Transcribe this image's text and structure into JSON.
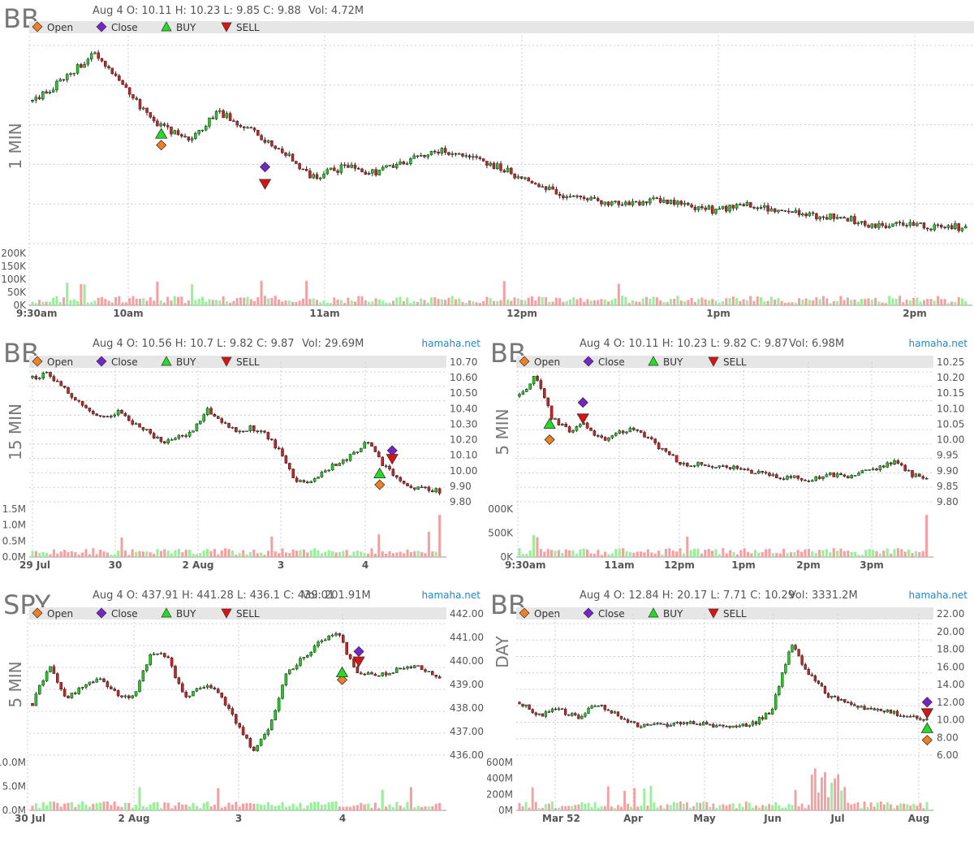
{
  "legend": {
    "open": "Open",
    "close": "Close",
    "buy": "BUY",
    "sell": "SELL"
  },
  "panels": [
    {
      "id": "p1",
      "symbol": "BB",
      "timeframe": "1 MIN",
      "ohlc": "Aug 4 O: 10.11 H: 10.23 L: 9.85 C: 9.88",
      "vol": "Vol: 4.72M",
      "watermark": "",
      "chart_data": {
        "type": "candlestick",
        "x_labels": [
          "9:30am",
          "10am",
          "11am",
          "12pm",
          "1pm",
          "2pm"
        ],
        "price_path": [
          10.11,
          10.15,
          10.2,
          10.13,
          10.07,
          10.04,
          10.09,
          10.06,
          10.02,
          9.97,
          9.99,
          9.98,
          10.0,
          10.02,
          10.01,
          9.99,
          9.96,
          9.94,
          9.93,
          9.92,
          9.93,
          9.92,
          9.91,
          9.92,
          9.91,
          9.9,
          9.9,
          9.88,
          9.89,
          9.88,
          9.88
        ],
        "price_range": [
          9.85,
          10.23
        ],
        "y_ticks": [],
        "volume_ticks": [
          "200K",
          "150K",
          "100K",
          "50K",
          "0K"
        ],
        "volume_max": 200000,
        "buy": {
          "x": 0.14,
          "price": 10.05
        },
        "sell": {
          "x": 0.25,
          "price": 9.96
        },
        "open_marker": {
          "x": 0.14,
          "price": 10.03
        },
        "close_marker": {
          "x": 0.25,
          "price": 9.99
        }
      }
    },
    {
      "id": "p2",
      "symbol": "BB",
      "timeframe": "15 MIN",
      "ohlc": "Aug 4 O: 10.56 H: 10.7 L: 9.82 C: 9.87",
      "vol": "Vol: 29.69M",
      "watermark": "hamaha.net",
      "chart_data": {
        "type": "candlestick",
        "x_labels": [
          "29 Jul",
          "30",
          "2 Aug",
          "3",
          "4"
        ],
        "price_path": [
          10.6,
          10.62,
          10.55,
          10.45,
          10.38,
          10.35,
          10.38,
          10.3,
          10.25,
          10.18,
          10.22,
          10.24,
          10.4,
          10.32,
          10.25,
          10.28,
          10.24,
          10.12,
          9.95,
          9.92,
          10.0,
          10.05,
          10.1,
          10.2,
          10.05,
          9.96,
          9.9,
          9.88,
          9.87
        ],
        "price_range": [
          9.8,
          10.7
        ],
        "y_ticks": [
          "10.70",
          "10.60",
          "10.50",
          "10.40",
          "10.30",
          "10.20",
          "10.10",
          "10.00",
          "9.90",
          "9.80"
        ],
        "volume_ticks": [
          "1.5M",
          "1.0M",
          "0.5M",
          "0.0M"
        ],
        "volume_max": 1500000,
        "buy": {
          "x": 0.84,
          "price": 9.98
        },
        "sell": {
          "x": 0.87,
          "price": 10.08
        },
        "open_marker": {
          "x": 0.84,
          "price": 9.91
        },
        "close_marker": {
          "x": 0.87,
          "price": 10.13
        }
      }
    },
    {
      "id": "p3",
      "symbol": "BB",
      "timeframe": "5 MIN",
      "ohlc": "Aug 4 O: 10.11 H: 10.23 L: 9.82 C: 9.87",
      "vol": "Vol: 6.98M",
      "watermark": "hamaha.net",
      "chart_data": {
        "type": "candlestick",
        "x_labels": [
          "9:30am",
          "11am",
          "12pm",
          "1pm",
          "2pm",
          "3pm"
        ],
        "price_path": [
          10.14,
          10.21,
          10.07,
          10.03,
          10.05,
          10.0,
          10.02,
          10.04,
          10.0,
          9.96,
          9.92,
          9.92,
          9.91,
          9.91,
          9.9,
          9.89,
          9.88,
          9.88,
          9.87,
          9.89,
          9.88,
          9.9,
          9.91,
          9.93,
          9.89,
          9.87
        ],
        "price_range": [
          9.8,
          10.25
        ],
        "y_ticks": [
          "10.25",
          "10.20",
          "10.15",
          "10.10",
          "10.05",
          "10.00",
          "9.95",
          "9.90",
          "9.85",
          "9.80"
        ],
        "volume_ticks": [
          "000K",
          "500K",
          "0K"
        ],
        "volume_max": 1000000,
        "buy": {
          "x": 0.08,
          "price": 10.05
        },
        "sell": {
          "x": 0.16,
          "price": 10.07
        },
        "open_marker": {
          "x": 0.08,
          "price": 10.0
        },
        "close_marker": {
          "x": 0.16,
          "price": 10.12
        }
      }
    },
    {
      "id": "p4",
      "symbol": "SPY",
      "timeframe": "5 MIN",
      "ohlc": "Aug 4 O: 437.91 H: 441.28 L: 436.1 C: 439.01",
      "vol": "Vol: 201.91M",
      "watermark": "hamaha.net",
      "chart_data": {
        "type": "candlestick",
        "x_labels": [
          "30 Jul",
          "2 Aug",
          "3",
          "4"
        ],
        "price_path": [
          438.2,
          439.8,
          438.4,
          438.9,
          439.3,
          438.6,
          438.5,
          440.4,
          440.1,
          438.4,
          439.0,
          438.6,
          437.4,
          436.2,
          437.2,
          439.5,
          440.2,
          440.8,
          441.2,
          439.6,
          439.4,
          439.5,
          439.8,
          439.7,
          439.3
        ],
        "price_range": [
          436.0,
          442.0
        ],
        "y_ticks": [
          "442.00",
          "441.00",
          "440.00",
          "439.00",
          "438.00",
          "437.00",
          "436.00"
        ],
        "volume_ticks": [
          "10.0M",
          "5.0M",
          "0.0M"
        ],
        "volume_max": 10000000,
        "buy": {
          "x": 0.75,
          "price": 439.5
        },
        "sell": {
          "x": 0.79,
          "price": 440.0
        },
        "open_marker": {
          "x": 0.75,
          "price": 439.2
        },
        "close_marker": {
          "x": 0.79,
          "price": 440.4
        }
      }
    },
    {
      "id": "p5",
      "symbol": "BB",
      "timeframe": "DAY",
      "ohlc": "Aug 4 O: 12.84 H: 20.17 L: 7.71 C: 10.29",
      "vol": "Vol: 3331.2M",
      "watermark": "hamaha.net",
      "chart_data": {
        "type": "candlestick",
        "x_labels": [
          "Mar 52",
          "Apr",
          "May",
          "Jun",
          "Jul",
          "Aug"
        ],
        "price_path": [
          12.0,
          10.5,
          11.2,
          10.2,
          11.8,
          10.6,
          9.3,
          9.6,
          9.4,
          9.8,
          9.2,
          9.1,
          9.5,
          11.0,
          18.5,
          15.0,
          12.5,
          11.8,
          11.3,
          10.9,
          10.3,
          10.2
        ],
        "price_range": [
          6.0,
          22.0
        ],
        "y_ticks": [
          "22.00",
          "20.00",
          "18.00",
          "16.00",
          "14.00",
          "12.00",
          "10.00",
          "8.00",
          "6.00"
        ],
        "volume_ticks": [
          "600M",
          "400M",
          "200M",
          "0M"
        ],
        "volume_max": 600000000,
        "buy": {
          "x": 0.985,
          "price": 9.0
        },
        "sell": {
          "x": 0.985,
          "price": 10.8
        },
        "open_marker": {
          "x": 0.985,
          "price": 7.7
        },
        "close_marker": {
          "x": 0.985,
          "price": 12.0
        }
      }
    }
  ],
  "colors": {
    "up": "#22cc22",
    "down": "#cc2222",
    "vol_up": "#99ee99",
    "vol_down": "#f4a0a0",
    "open": "#f08020",
    "close": "#7722cc",
    "buy": "#22dd22",
    "sell": "#dd1111",
    "grid": "#cccccc",
    "text": "#555555",
    "legend_bg": "#e6e6e6",
    "watermark": "#2288cc"
  }
}
